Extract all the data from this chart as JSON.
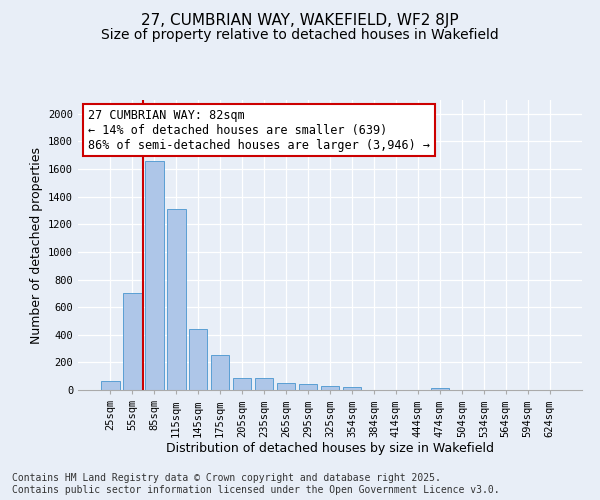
{
  "title_line1": "27, CUMBRIAN WAY, WAKEFIELD, WF2 8JP",
  "title_line2": "Size of property relative to detached houses in Wakefield",
  "xlabel": "Distribution of detached houses by size in Wakefield",
  "ylabel": "Number of detached properties",
  "categories": [
    "25sqm",
    "55sqm",
    "85sqm",
    "115sqm",
    "145sqm",
    "175sqm",
    "205sqm",
    "235sqm",
    "265sqm",
    "295sqm",
    "325sqm",
    "354sqm",
    "384sqm",
    "414sqm",
    "444sqm",
    "474sqm",
    "504sqm",
    "534sqm",
    "564sqm",
    "594sqm",
    "624sqm"
  ],
  "values": [
    65,
    700,
    1660,
    1310,
    445,
    255,
    90,
    85,
    50,
    40,
    30,
    25,
    0,
    0,
    0,
    15,
    0,
    0,
    0,
    0,
    0
  ],
  "bar_color": "#aec6e8",
  "bar_edge_color": "#5a9fd4",
  "annotation_text": "27 CUMBRIAN WAY: 82sqm\n← 14% of detached houses are smaller (639)\n86% of semi-detached houses are larger (3,946) →",
  "annotation_box_color": "#ffffff",
  "annotation_box_edge_color": "#cc0000",
  "vline_color": "#cc0000",
  "ylim": [
    0,
    2100
  ],
  "yticks": [
    0,
    200,
    400,
    600,
    800,
    1000,
    1200,
    1400,
    1600,
    1800,
    2000
  ],
  "background_color": "#e8eef7",
  "plot_bg_color": "#e8eef7",
  "footer_text": "Contains HM Land Registry data © Crown copyright and database right 2025.\nContains public sector information licensed under the Open Government Licence v3.0.",
  "title_fontsize": 11,
  "subtitle_fontsize": 10,
  "annotation_fontsize": 8.5,
  "footer_fontsize": 7,
  "ylabel_fontsize": 9,
  "xlabel_fontsize": 9,
  "tick_fontsize": 7.5
}
